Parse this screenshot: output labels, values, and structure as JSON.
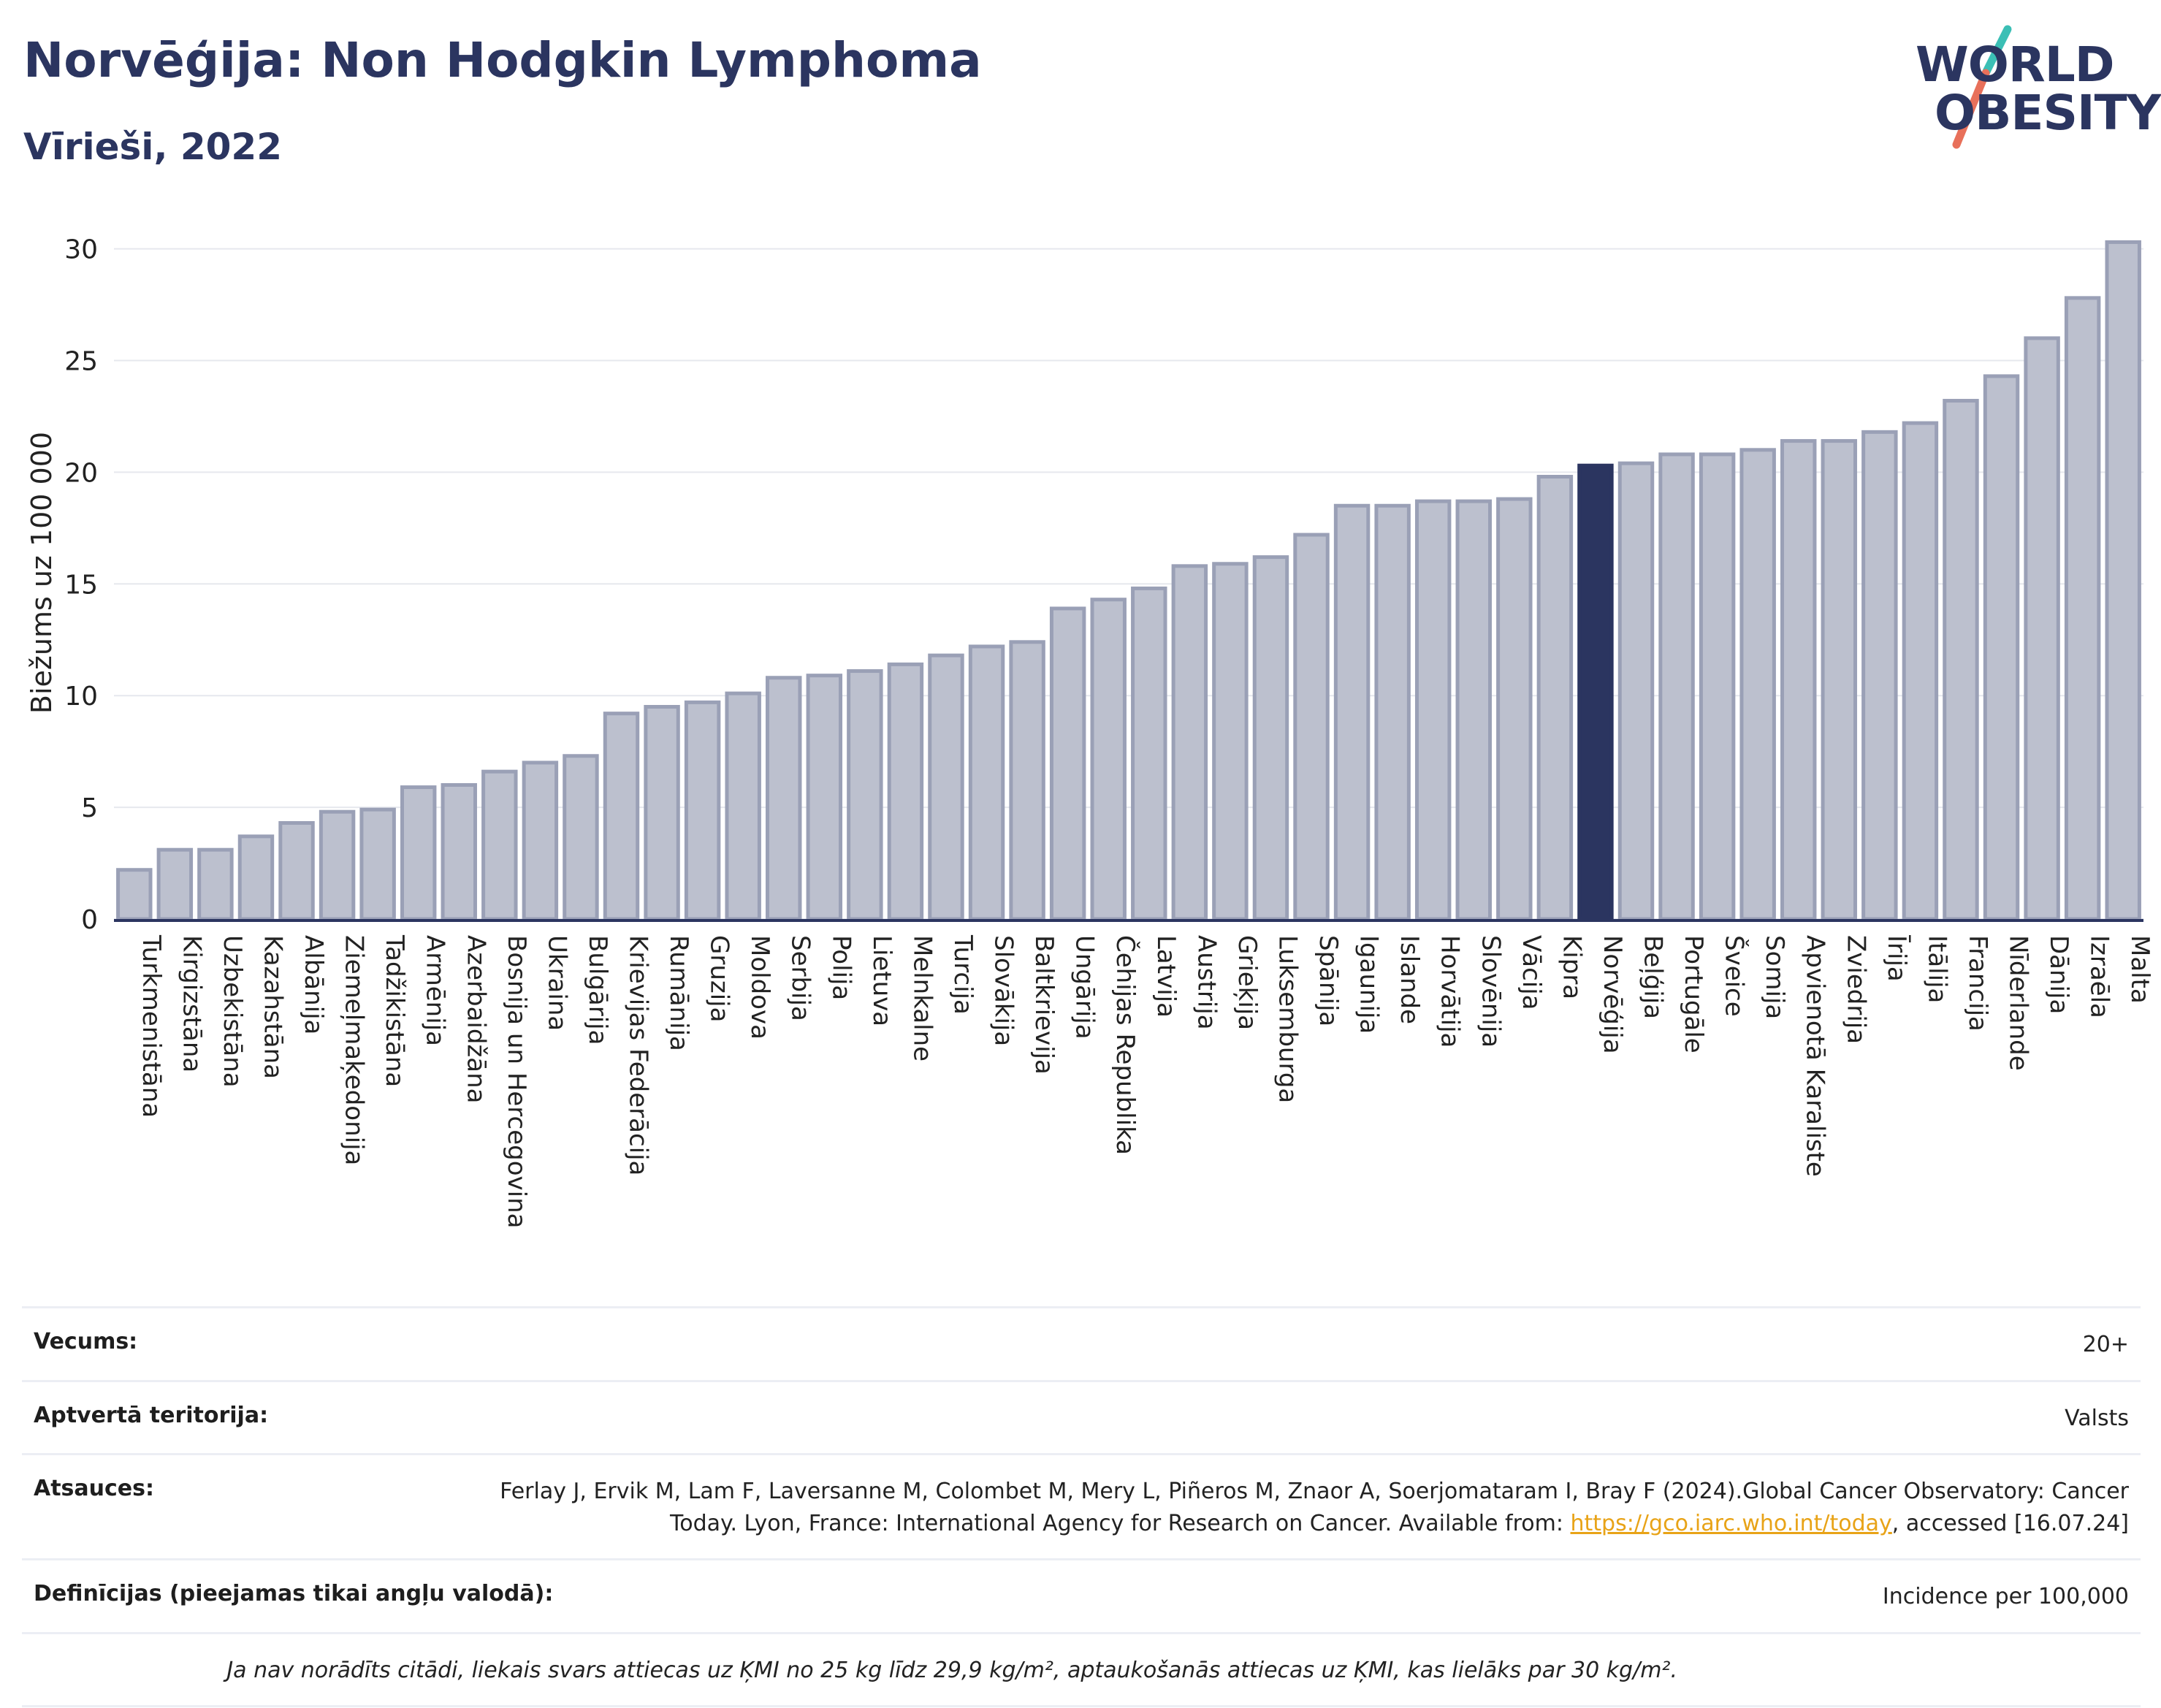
{
  "header": {
    "title": "Norvēģija: Non Hodgkin Lymphoma",
    "subtitle": "Vīrieši, 2022"
  },
  "logo": {
    "line1": "WORLD",
    "line2": "OBESITY"
  },
  "colors": {
    "bar": "#bcc0ce",
    "bar_edge": "#9aa0b6",
    "highlight": "#2b3560",
    "grid": "#e6e8ee",
    "axis": "#2b3560"
  },
  "chart_data": {
    "type": "bar",
    "ylabel": "Biežums uz 100 000",
    "ylim": [
      0,
      31
    ],
    "yticks": [
      0,
      5,
      10,
      15,
      20,
      25,
      30
    ],
    "grid": true,
    "highlight": "Norvēģija",
    "categories": [
      "Turkmenistāna",
      "Kirgizstāna",
      "Uzbekistāna",
      "Kazahstāna",
      "Albānija",
      "Ziemeļmaķedonija",
      "Tadžikistāna",
      "Armēnija",
      "Azerbaidžāna",
      "Bosnija un Hercegovina",
      "Ukraina",
      "Bulgārija",
      "Krievijas Federācija",
      "Rumānija",
      "Gruzija",
      "Moldova",
      "Serbija",
      "Polija",
      "Lietuva",
      "Melnkalne",
      "Turcija",
      "Slovākija",
      "Baltkrievija",
      "Ungārija",
      "Čehijas Republika",
      "Latvija",
      "Austrija",
      "Grieķija",
      "Luksemburga",
      "Spānija",
      "Igaunija",
      "Islande",
      "Horvātija",
      "Slovēnija",
      "Vācija",
      "Kipra",
      "Norvēģija",
      "Beļģija",
      "Portugāle",
      "Šveice",
      "Somija",
      "Apvienotā Karaliste",
      "Zviedrija",
      "Īrija",
      "Itālija",
      "Francija",
      "Nīderlande",
      "Dānija",
      "Izraēla",
      "Malta"
    ],
    "values": [
      2.2,
      3.1,
      3.1,
      3.7,
      4.3,
      4.8,
      4.9,
      5.9,
      6.0,
      6.6,
      7.0,
      7.3,
      9.2,
      9.5,
      9.7,
      10.1,
      10.8,
      10.9,
      11.1,
      11.4,
      11.8,
      12.2,
      12.4,
      13.9,
      14.3,
      14.8,
      15.8,
      15.9,
      16.2,
      17.2,
      18.5,
      18.5,
      18.7,
      18.7,
      18.8,
      19.8,
      20.3,
      20.4,
      20.8,
      20.8,
      21.0,
      21.4,
      21.4,
      21.8,
      22.2,
      23.2,
      24.3,
      26.0,
      27.8,
      30.3
    ]
  },
  "info": {
    "age_label": "Vecums:",
    "age_value": "20+",
    "territory_label": "Aptvertā teritorija:",
    "territory_value": "Valsts",
    "refs_label": "Atsauces:",
    "refs_text": "Ferlay J, Ervik M, Lam F, Laversanne M, Colombet M, Mery L, Piñeros M, Znaor A, Soerjomataram I, Bray F (2024).Global Cancer Observatory: Cancer Today. Lyon, France: International Agency for Research on Cancer. Available from:",
    "refs_link": "https://gco.iarc.who.int/today",
    "refs_tail": ", accessed [16.07.24]",
    "defs_label": "Definīcijas (pieejamas tikai angļu valodā):",
    "defs_value": "Incidence per 100,000",
    "note": "Ja nav norādīts citādi, liekais svars attiecas uz ĶMI no 25 kg līdz 29,9 kg/m², aptaukošanās attiecas uz ĶMI, kas lielāks par 30 kg/m²."
  }
}
